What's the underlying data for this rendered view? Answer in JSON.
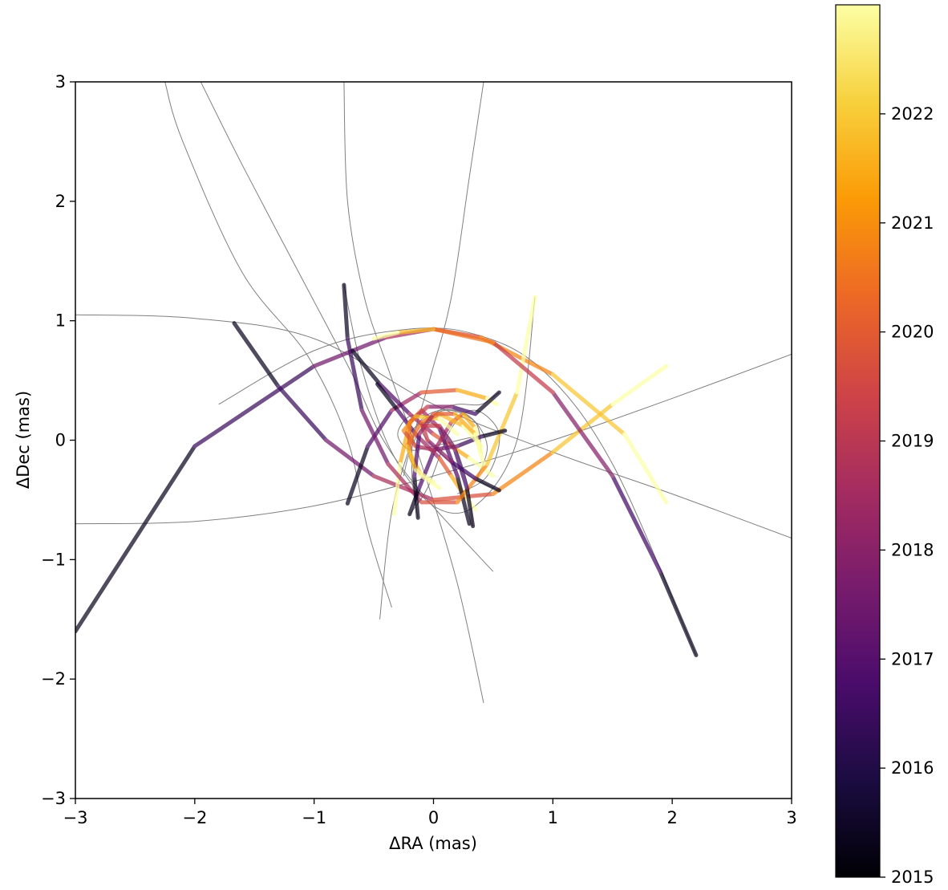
{
  "chart_data": {
    "type": "line",
    "title": "",
    "xlabel": "ΔRA (mas)",
    "ylabel": "ΔDec (mas)",
    "xlim": [
      -3,
      3
    ],
    "ylim": [
      -3,
      3
    ],
    "xticks": [
      -3,
      -2,
      -1,
      0,
      1,
      2,
      3
    ],
    "yticks": [
      -3,
      -2,
      -1,
      0,
      1,
      2,
      3
    ],
    "x_tick_labels": [
      "−3",
      "−2",
      "−1",
      "0",
      "1",
      "2",
      "3"
    ],
    "y_tick_labels": [
      "−3",
      "−2",
      "−1",
      "0",
      "1",
      "2",
      "3"
    ],
    "grid": false,
    "orbit_line_color": "#808080",
    "colorbar": {
      "colormap": "inferno",
      "range": [
        2015,
        2023
      ],
      "ticks": [
        2015,
        2016,
        2017,
        2018,
        2019,
        2020,
        2021,
        2022
      ],
      "tick_labels": [
        "2015",
        "2016",
        "2017",
        "2018",
        "2019",
        "2020",
        "2021",
        "2022"
      ],
      "colors": [
        "#000004",
        "#1b0c41",
        "#4a0c6b",
        "#781c6d",
        "#a52c60",
        "#cf4446",
        "#ed6925",
        "#fb9b06",
        "#f7d13d",
        "#fcffa4"
      ]
    },
    "series": [
      {
        "orbit": [
          [
            -3.0,
            1.05
          ],
          [
            -2.0,
            1.02
          ],
          [
            -1.0,
            0.85
          ],
          [
            0.0,
            0.3
          ],
          [
            1.0,
            -0.1
          ],
          [
            2.0,
            -0.45
          ],
          [
            3.0,
            -0.82
          ]
        ],
        "track": {
          "x": [
            -3.0,
            -2.0,
            -1.0,
            -0.4,
            0.0,
            0.4,
            1.0,
            1.6,
            1.95
          ],
          "y": [
            -1.6,
            -0.05,
            0.62,
            0.86,
            0.93,
            0.86,
            0.55,
            0.05,
            -0.52
          ]
        }
      },
      {
        "orbit": [
          [
            -3.0,
            -0.7
          ],
          [
            -2.0,
            -0.68
          ],
          [
            -1.0,
            -0.55
          ],
          [
            0.0,
            -0.3
          ],
          [
            1.0,
            0.0
          ],
          [
            2.0,
            0.35
          ],
          [
            3.0,
            0.72
          ]
        ],
        "track": {
          "x": [
            -1.67,
            -1.3,
            -0.9,
            -0.5,
            0.0,
            0.5,
            1.0,
            1.5,
            1.95
          ],
          "y": [
            0.98,
            0.45,
            0.0,
            -0.3,
            -0.5,
            -0.45,
            -0.1,
            0.3,
            0.62
          ]
        }
      },
      {
        "orbit": [
          [
            -2.25,
            3.0
          ],
          [
            -2.1,
            2.5
          ],
          [
            -1.6,
            1.4
          ],
          [
            -1.05,
            0.7
          ],
          [
            -0.72,
            0.0
          ],
          [
            -0.55,
            -0.75
          ],
          [
            -0.35,
            -1.4
          ]
        ],
        "track": {
          "x": [
            -0.72,
            -0.55,
            -0.35,
            -0.1,
            0.2,
            0.45,
            0.53
          ],
          "y": [
            -0.53,
            -0.05,
            0.25,
            0.4,
            0.42,
            0.35,
            0.3
          ]
        }
      },
      {
        "orbit": [
          [
            -1.95,
            3.0
          ],
          [
            -1.6,
            2.3
          ],
          [
            -1.1,
            1.35
          ],
          [
            -0.68,
            0.55
          ],
          [
            -0.42,
            0.0
          ],
          [
            -0.05,
            -0.5
          ],
          [
            0.5,
            -1.1
          ]
        ],
        "track": {
          "x": [
            -0.68,
            -0.45,
            -0.2,
            0.0,
            0.15,
            0.3,
            0.5
          ],
          "y": [
            0.75,
            0.47,
            0.22,
            0.05,
            -0.05,
            -0.15,
            -0.3
          ]
        }
      },
      {
        "orbit": [
          [
            0.42,
            3.0
          ],
          [
            0.3,
            2.2
          ],
          [
            0.15,
            1.2
          ],
          [
            -0.02,
            0.55
          ],
          [
            -0.15,
            0.1
          ],
          [
            -0.35,
            -0.6
          ],
          [
            -0.45,
            -1.5
          ]
        ],
        "track": {
          "x": [
            -0.47,
            -0.3,
            -0.15,
            0.05,
            0.15,
            0.25,
            0.35
          ],
          "y": [
            0.47,
            0.25,
            0.05,
            -0.15,
            -0.3,
            -0.45,
            -0.58
          ]
        }
      },
      {
        "orbit": [
          [
            -0.75,
            3.0
          ],
          [
            -0.72,
            2.0
          ],
          [
            -0.58,
            1.2
          ],
          [
            -0.38,
            0.6
          ],
          [
            -0.1,
            -0.2
          ],
          [
            0.2,
            -1.2
          ],
          [
            0.42,
            -2.2
          ]
        ],
        "track": {
          "x": [
            0.3,
            0.2,
            0.05,
            -0.1,
            -0.2,
            -0.28,
            -0.33
          ],
          "y": [
            -0.7,
            -0.3,
            0.1,
            0.25,
            0.15,
            -0.2,
            -0.62
          ]
        }
      },
      {
        "orbit": [
          [
            0.85,
            1.2
          ],
          [
            0.7,
            0.0
          ],
          [
            0.35,
            -0.55
          ],
          [
            0.0,
            -0.55
          ],
          [
            -0.35,
            -0.1
          ],
          [
            -0.6,
            0.6
          ],
          [
            -0.75,
            1.3
          ]
        ],
        "track": {
          "x": [
            -0.75,
            -0.72,
            -0.6,
            -0.38,
            -0.1,
            0.2,
            0.45,
            0.7,
            0.85
          ],
          "y": [
            1.3,
            0.85,
            0.25,
            -0.2,
            -0.52,
            -0.52,
            -0.2,
            0.4,
            1.2
          ]
        }
      },
      {
        "orbit": [
          [
            2.2,
            -1.8
          ],
          [
            1.5,
            -0.2
          ],
          [
            0.9,
            0.6
          ],
          [
            0.3,
            0.9
          ],
          [
            -0.3,
            0.92
          ],
          [
            -1.0,
            0.75
          ],
          [
            -1.8,
            0.3
          ]
        ],
        "track": {
          "x": [
            2.2,
            1.9,
            1.5,
            1.0,
            0.5,
            0.0,
            -0.3,
            -0.5
          ],
          "y": [
            -1.8,
            -1.1,
            -0.3,
            0.4,
            0.82,
            0.93,
            0.9,
            0.85
          ]
        }
      },
      {
        "orbit": [
          [
            -0.2,
            -0.62
          ],
          [
            -0.05,
            -0.4
          ],
          [
            0.15,
            0.1
          ],
          [
            0.35,
            0.25
          ],
          [
            0.55,
            0.05
          ],
          [
            0.45,
            -0.3
          ],
          [
            0.2,
            -0.45
          ]
        ],
        "track": {
          "x": [
            -0.2,
            -0.12,
            0.0,
            0.15,
            0.25,
            0.35,
            0.4
          ],
          "y": [
            -0.62,
            -0.4,
            -0.1,
            0.15,
            0.22,
            0.1,
            -0.1
          ]
        }
      },
      {
        "orbit": [
          [
            0.55,
            0.4
          ],
          [
            0.4,
            0.3
          ],
          [
            0.2,
            0.3
          ],
          [
            0.05,
            0.25
          ],
          [
            -0.1,
            0.1
          ],
          [
            -0.2,
            -0.1
          ],
          [
            -0.25,
            -0.3
          ]
        ],
        "track": {
          "x": [
            0.55,
            0.35,
            0.15,
            -0.05,
            -0.2,
            -0.2,
            -0.1,
            0.05
          ],
          "y": [
            0.4,
            0.22,
            0.28,
            0.28,
            0.15,
            -0.1,
            -0.3,
            -0.4
          ]
        }
      },
      {
        "orbit": [
          [
            0.6,
            0.08
          ],
          [
            0.3,
            0.02
          ],
          [
            0.0,
            -0.05
          ],
          [
            -0.2,
            -0.08
          ],
          [
            -0.3,
            0.05
          ],
          [
            -0.2,
            0.2
          ],
          [
            0.0,
            0.2
          ]
        ],
        "track": {
          "x": [
            0.6,
            0.4,
            0.2,
            0.0,
            -0.15,
            -0.25,
            -0.15,
            0.05,
            0.2
          ],
          "y": [
            0.08,
            0.03,
            -0.05,
            -0.08,
            -0.05,
            0.08,
            0.2,
            0.18,
            0.05
          ]
        }
      },
      {
        "orbit": [
          [
            0.55,
            -0.42
          ],
          [
            0.3,
            -0.3
          ],
          [
            0.05,
            -0.1
          ],
          [
            -0.1,
            0.1
          ],
          [
            0.1,
            0.25
          ],
          [
            0.35,
            0.15
          ],
          [
            0.4,
            -0.1
          ]
        ],
        "track": {
          "x": [
            0.55,
            0.35,
            0.15,
            -0.05,
            -0.1,
            0.05,
            0.25,
            0.4
          ],
          "y": [
            -0.42,
            -0.32,
            -0.18,
            0.0,
            0.15,
            0.22,
            0.12,
            -0.05
          ]
        }
      },
      {
        "orbit": [
          [
            -0.13,
            -0.65
          ],
          [
            -0.18,
            -0.3
          ],
          [
            -0.15,
            0.1
          ],
          [
            0.05,
            0.25
          ],
          [
            0.3,
            0.2
          ],
          [
            0.45,
            -0.05
          ],
          [
            0.35,
            -0.35
          ]
        ],
        "track": {
          "x": [
            -0.13,
            -0.16,
            -0.12,
            0.0,
            0.18,
            0.35,
            0.42
          ],
          "y": [
            -0.65,
            -0.3,
            0.05,
            0.22,
            0.22,
            0.05,
            -0.2
          ]
        }
      },
      {
        "orbit": [
          [
            0.33,
            -0.72
          ],
          [
            0.28,
            -0.35
          ],
          [
            0.15,
            0.0
          ],
          [
            -0.05,
            0.15
          ],
          [
            -0.2,
            0.05
          ],
          [
            -0.2,
            -0.15
          ],
          [
            -0.1,
            -0.3
          ]
        ],
        "track": {
          "x": [
            0.33,
            0.28,
            0.18,
            0.05,
            -0.12,
            -0.22,
            -0.15,
            0.0
          ],
          "y": [
            -0.72,
            -0.4,
            -0.08,
            0.12,
            0.12,
            -0.05,
            -0.25,
            -0.35
          ]
        }
      }
    ]
  }
}
